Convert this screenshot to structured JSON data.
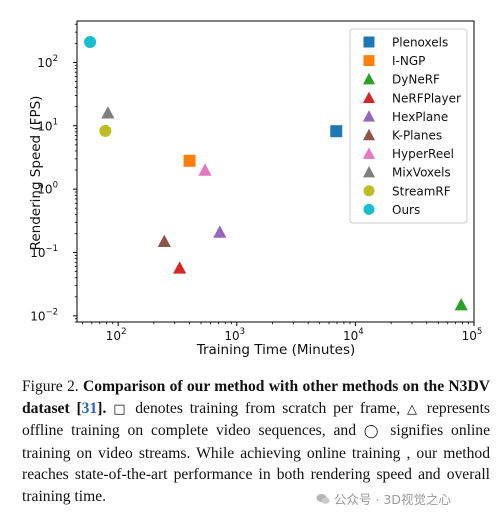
{
  "chart_data": {
    "type": "scatter",
    "xlabel": "Training Time (Minutes)",
    "ylabel": "Rendering Speed (FPS)",
    "xscale": "log",
    "yscale": "log",
    "xlim": [
      45,
      100000
    ],
    "ylim": [
      0.008,
      450
    ],
    "x_ticks": [
      {
        "value": 100,
        "base": "10",
        "exp": "2"
      },
      {
        "value": 1000,
        "base": "10",
        "exp": "3"
      },
      {
        "value": 10000,
        "base": "10",
        "exp": "4"
      },
      {
        "value": 100000,
        "base": "10",
        "exp": "5"
      }
    ],
    "y_ticks": [
      {
        "value": 0.01,
        "base": "10",
        "exp": "−2"
      },
      {
        "value": 0.1,
        "base": "10",
        "exp": "−1"
      },
      {
        "value": 1,
        "base": "10",
        "exp": "0"
      },
      {
        "value": 10,
        "base": "10",
        "exp": "1"
      },
      {
        "value": 100,
        "base": "10",
        "exp": "2"
      }
    ],
    "grid": false,
    "legend_position": "top-right",
    "series": [
      {
        "name": "Plenoxels",
        "marker": "square",
        "color": "#1f77b4",
        "points": [
          [
            6900,
            8.2
          ]
        ]
      },
      {
        "name": "I-NGP",
        "marker": "square",
        "color": "#ff7f0e",
        "points": [
          [
            400,
            2.8
          ]
        ]
      },
      {
        "name": "DyNeRF",
        "marker": "triangle",
        "color": "#2ca02c",
        "points": [
          [
            78000,
            0.015
          ]
        ]
      },
      {
        "name": "NeRFPlayer",
        "marker": "triangle",
        "color": "#d62728",
        "points": [
          [
            330,
            0.057
          ]
        ]
      },
      {
        "name": "HexPlane",
        "marker": "triangle",
        "color": "#9467bd",
        "points": [
          [
            720,
            0.21
          ]
        ]
      },
      {
        "name": "K-Planes",
        "marker": "triangle",
        "color": "#8c564b",
        "points": [
          [
            245,
            0.15
          ]
        ]
      },
      {
        "name": "HyperReel",
        "marker": "triangle",
        "color": "#e377c2",
        "points": [
          [
            540,
            2.0
          ]
        ]
      },
      {
        "name": "MixVoxels",
        "marker": "triangle",
        "color": "#7f7f7f",
        "points": [
          [
            82,
            16
          ]
        ]
      },
      {
        "name": "StreamRF",
        "marker": "circle",
        "color": "#bcbd22",
        "points": [
          [
            78,
            8.3
          ]
        ]
      },
      {
        "name": "Ours",
        "marker": "circle",
        "color": "#17becf",
        "points": [
          [
            58,
            210
          ]
        ]
      }
    ]
  },
  "caption": {
    "label": "Figure 2.",
    "bold_title": "Comparison of our method with other methods on the N3DV dataset [",
    "ref": "31",
    "bold_title_end": "].",
    "square_symbol": "□",
    "text1": " denotes training from scratch per frame, ",
    "triangle_symbol": "△",
    "text2": " represents offline training on complete video sequences, and ",
    "circle_symbol": "◯",
    "text3": " signifies online training on video streams. While achieving online training , our method reaches state-of-the-art performance in both rendering speed and overall training time."
  },
  "watermark": {
    "text": "公众号 · 3D视觉之心"
  }
}
